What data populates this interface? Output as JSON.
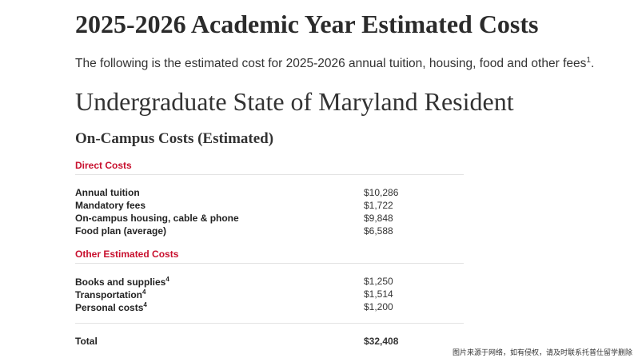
{
  "header": {
    "title": "2025-2026 Academic Year Estimated Costs",
    "intro": "The following is the estimated cost for 2025-2026 annual tuition, housing, food and other fees",
    "intro_footnote": "1",
    "intro_end": "."
  },
  "section": {
    "title": "Undergraduate State of Maryland Resident",
    "subtitle": "On-Campus Costs (Estimated)"
  },
  "groups": [
    {
      "name": "Direct Costs",
      "rows": [
        {
          "label": "Annual tuition",
          "cost": "$10,286"
        },
        {
          "label": "Mandatory fees",
          "cost": "$1,722"
        },
        {
          "label": "On-campus housing, cable & phone",
          "cost": "$9,848"
        },
        {
          "label": "Food plan (average)",
          "cost": "$6,588"
        }
      ]
    },
    {
      "name": "Other Estimated Costs",
      "rows": [
        {
          "label": "Books and supplies",
          "note": "4",
          "cost": "$1,250"
        },
        {
          "label": "Transportation",
          "note": "4",
          "cost": "$1,514"
        },
        {
          "label": "Personal costs",
          "note": "4",
          "cost": "$1,200"
        }
      ]
    }
  ],
  "total": {
    "label": "Total",
    "cost": "$32,408"
  },
  "watermark": "图片来源于网络，如有侵权，请及时联系托普仕留学删除"
}
